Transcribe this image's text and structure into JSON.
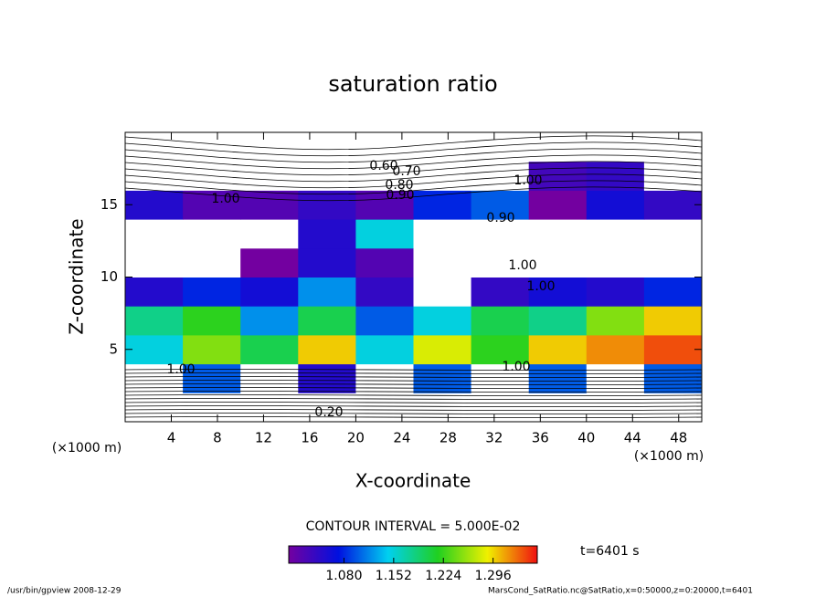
{
  "chart_data": {
    "type": "heatmap",
    "title": "saturation ratio",
    "x_label": "X-coordinate",
    "y_label": "Z-coordinate",
    "x_unit_left": "(×1000 m)",
    "x_unit_right": "(×1000 m)",
    "contour_interval": "CONTOUR INTERVAL = 5.000E-02",
    "time_label": "t=6401 s",
    "footer_left": "/usr/bin/gpview   2008-12-29",
    "footer_right": "MarsCond_SatRatio.nc@SatRatio,x=0:50000,z=0:20000,t=6401",
    "contour_labels": [
      "0.60",
      "0.70",
      "0.80",
      "0.90",
      "1.00",
      "1.00",
      "0.90",
      "1.00",
      "1.00",
      "1.00",
      "1.00",
      "0.20"
    ],
    "xlim": [
      0,
      50
    ],
    "ylim": [
      0,
      20
    ],
    "xticks": [
      4,
      8,
      12,
      16,
      20,
      24,
      28,
      32,
      36,
      40,
      44,
      48
    ],
    "yticks": [
      5,
      10,
      15
    ],
    "x": [
      2.5,
      7.5,
      12.5,
      17.5,
      22.5,
      27.5,
      32.5,
      37.5,
      42.5,
      47.5
    ],
    "y": [
      1,
      3,
      5,
      7,
      9,
      11,
      13,
      15,
      17,
      19
    ],
    "values": [
      [
        0.3,
        0.3,
        0.3,
        0.3,
        0.3,
        0.3,
        0.3,
        0.3,
        0.3,
        0.3
      ],
      [
        0.95,
        1.1,
        0.95,
        1.05,
        0.95,
        1.1,
        0.95,
        1.1,
        0.95,
        1.1
      ],
      [
        1.15,
        1.25,
        1.2,
        1.3,
        1.15,
        1.28,
        1.22,
        1.3,
        1.32,
        1.34
      ],
      [
        1.18,
        1.22,
        1.12,
        1.2,
        1.1,
        1.15,
        1.2,
        1.18,
        1.25,
        1.3
      ],
      [
        1.05,
        1.08,
        1.06,
        1.12,
        1.04,
        0.95,
        1.04,
        1.06,
        1.05,
        1.08
      ],
      [
        0.9,
        0.95,
        1.0,
        1.05,
        1.02,
        0.9,
        0.9,
        0.9,
        0.9,
        0.9
      ],
      [
        0.9,
        0.92,
        0.95,
        1.05,
        1.15,
        0.9,
        0.9,
        0.9,
        0.9,
        0.9
      ],
      [
        1.05,
        1.02,
        1.02,
        1.04,
        1.02,
        1.08,
        1.1,
        1.0,
        1.06,
        1.04
      ],
      [
        0.9,
        0.9,
        0.9,
        0.7,
        0.8,
        0.9,
        0.95,
        1.03,
        1.04,
        0.95
      ],
      [
        0.85,
        0.85,
        0.85,
        0.85,
        0.85,
        0.85,
        0.85,
        0.85,
        0.85,
        0.85
      ]
    ],
    "colorbar_lim": [
      1.0,
      1.36
    ],
    "colorbar_ticks": [
      {
        "value": 1.08,
        "label": "1.080"
      },
      {
        "value": 1.152,
        "label": "1.152"
      },
      {
        "value": 1.224,
        "label": "1.224"
      },
      {
        "value": 1.296,
        "label": "1.296"
      }
    ]
  }
}
